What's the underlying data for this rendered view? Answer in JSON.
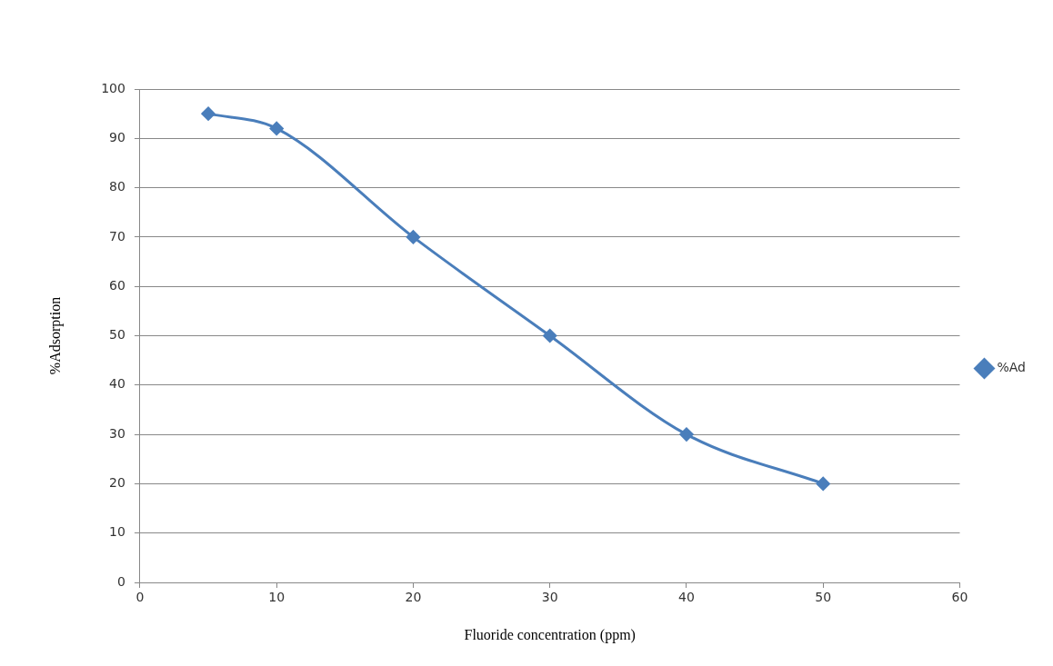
{
  "chart_data": {
    "type": "line",
    "xlabel": "Fluoride concentration (ppm)",
    "ylabel": "%Adsorption",
    "x": [
      5,
      10,
      20,
      30,
      40,
      50
    ],
    "series": [
      {
        "name": "%Ad",
        "color": "#4a7ebb",
        "values": [
          95,
          92,
          70,
          50,
          30,
          20
        ]
      }
    ],
    "xlim": [
      0,
      60
    ],
    "xticks": [
      0,
      10,
      20,
      30,
      40,
      50,
      60
    ],
    "ylim": [
      0,
      100
    ],
    "yticks": [
      0,
      10,
      20,
      30,
      40,
      50,
      60,
      70,
      80,
      90,
      100
    ],
    "grid": "y",
    "legend": "right",
    "marker": "diamond",
    "line_style": "solid"
  }
}
